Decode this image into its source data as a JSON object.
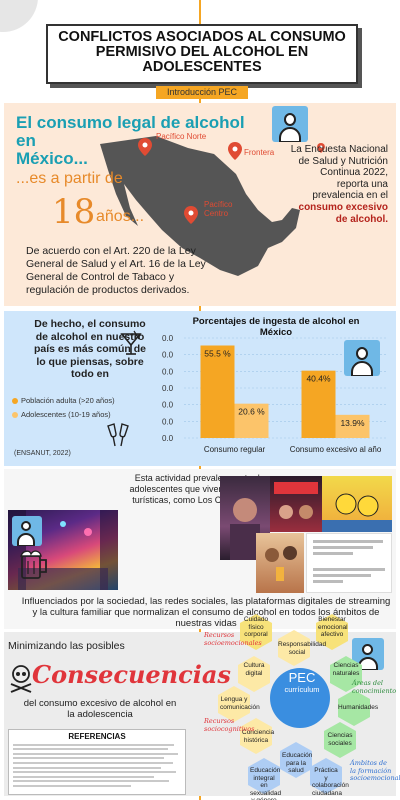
{
  "header": {
    "title_lines": [
      "CONFLICTOS ASOCIADOS AL CONSUMO",
      "PERMISIVO DEL ALCOHOL EN",
      "ADOLESCENTES"
    ],
    "intro_tag": "Introducción PEC"
  },
  "legal": {
    "heading_lines": [
      "El consumo legal de alcohol en",
      "México..."
    ],
    "from_text": "...es a partir de",
    "age_number": "18",
    "age_word": "años...",
    "law_text": "De acuerdo con el Art. 220 de la Ley General de Salud y el Art. 16 de la Ley General de Control de Tabaco y regulación de productos derivados.",
    "map_pins": [
      "Pacífico Norte",
      "Frontera",
      "Pacífico Centro"
    ],
    "survey_plain": "La Encuesta Nacional de Salud y Nutrición Continua 2022, reporta una prevalencia en el",
    "survey_highlight": "consumo excesivo de alcohol."
  },
  "stats": {
    "fact_text": "De hecho, el consumo de alcohol en nuestro país es más común de lo que piensas, sobre todo en",
    "legend": [
      {
        "label": "Población adulta (>20 años)",
        "color": "#f5a623"
      },
      {
        "label": "Adolescentes (10-19 años)",
        "color": "#fcc46a"
      }
    ],
    "source": "(ENSANUT, 2022)"
  },
  "chart_data": {
    "type": "bar",
    "title": "Porcentajes de ingesta de alcohol en México",
    "categories": [
      "Consumo regular",
      "Consumo excesivo al año"
    ],
    "series": [
      {
        "name": "Población adulta (>20 años)",
        "values": [
          55.5,
          40.4
        ],
        "labels": [
          "55.5 %",
          "40.4%"
        ],
        "color": "#f5a623"
      },
      {
        "name": "Adolescentes (10-19 años)",
        "values": [
          20.6,
          13.9
        ],
        "labels": [
          "20.6 %",
          "13.9%"
        ],
        "color": "#fcc46a"
      }
    ],
    "y_ticks": [
      "0.0",
      "0.0",
      "0.0",
      "0.0",
      "0.0",
      "0.0",
      "0.0"
    ],
    "ylim": [
      0,
      60
    ],
    "grid": true
  },
  "activity": {
    "text": "Esta actividad prevalece entre los adolescentes que viven en ciudades turísticas, como Los Cabos, B.C.S.",
    "influence_text": "Influenciados por la sociedad, las redes sociales, las plataformas digitales de streaming y la cultura familiar que normalizan el consumo de alcohol en todos los ámbitos de nuestras vidas"
  },
  "consequences": {
    "minimizing": "Minimizando las posibles",
    "word": "Consecuencias",
    "subtitle": "del consumo excesivo de alcohol en la adolescencia",
    "references_title": "REFERENCIAS"
  },
  "pec": {
    "center_title": "PEC",
    "center_sub": "currículum",
    "hexagons": [
      "Cuidado físico corporal",
      "Responsabilidad social",
      "Bienestar emocional afectivo",
      "Cultura digital",
      "Ciencias naturales",
      "Lengua y comunicación",
      "Humanidades",
      "Conciencia histórica",
      "Ciencias sociales",
      "Educación para la salud",
      "Práctica y colaboración ciudadana",
      "Educación integral en sexualidad y género"
    ],
    "side_labels": [
      {
        "text": "Recursos socioemocionales",
        "color": "#e0353b"
      },
      {
        "text": "Áreas del conocimiento",
        "color": "#2e8b3e"
      },
      {
        "text": "Recursos sociocognitivos",
        "color": "#e0353b"
      },
      {
        "text": "Ámbitos de la formación socioemocional",
        "color": "#2e6fd1"
      }
    ]
  }
}
